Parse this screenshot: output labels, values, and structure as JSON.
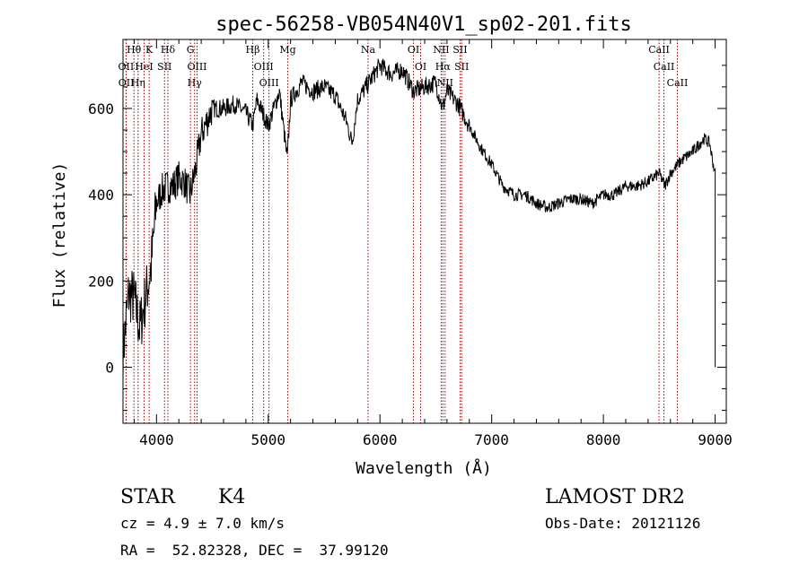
{
  "chart_data": {
    "type": "line",
    "title": "spec-56258-VB054N40V1_sp02-201.fits",
    "xlabel": "Wavelength (Å)",
    "ylabel": "Flux (relative)",
    "xlim": [
      3700,
      9100
    ],
    "ylim": [
      -130,
      760
    ],
    "xticks": [
      {
        "value": 4000,
        "label": "4000"
      },
      {
        "value": 5000,
        "label": "5000"
      },
      {
        "value": 6000,
        "label": "6000"
      },
      {
        "value": 7000,
        "label": "7000"
      },
      {
        "value": 8000,
        "label": "8000"
      },
      {
        "value": 9000,
        "label": "9000"
      }
    ],
    "yticks": [
      {
        "value": 0,
        "label": "0"
      },
      {
        "value": 200,
        "label": "200"
      },
      {
        "value": 400,
        "label": "400"
      },
      {
        "value": 600,
        "label": "600"
      }
    ],
    "grid": false,
    "series": [
      {
        "color": "#000000",
        "x": [
          3700,
          3750,
          3800,
          3850,
          3900,
          3950,
          4000,
          4050,
          4100,
          4150,
          4200,
          4250,
          4300,
          4350,
          4400,
          4450,
          4500,
          4600,
          4700,
          4800,
          4860,
          4900,
          5000,
          5100,
          5170,
          5200,
          5300,
          5400,
          5500,
          5600,
          5700,
          5750,
          5800,
          5900,
          6000,
          6100,
          6200,
          6300,
          6400,
          6500,
          6560,
          6600,
          6700,
          6800,
          6900,
          7000,
          7100,
          7200,
          7300,
          7400,
          7500,
          7600,
          7700,
          7800,
          7900,
          8000,
          8100,
          8200,
          8300,
          8400,
          8500,
          8550,
          8600,
          8700,
          8800,
          8900,
          8950,
          8990,
          9000
        ],
        "y": [
          30,
          170,
          160,
          90,
          160,
          230,
          380,
          410,
          420,
          420,
          440,
          430,
          400,
          460,
          540,
          570,
          600,
          600,
          610,
          590,
          560,
          620,
          560,
          640,
          480,
          620,
          660,
          640,
          650,
          630,
          570,
          520,
          620,
          660,
          700,
          680,
          690,
          640,
          650,
          660,
          600,
          640,
          610,
          560,
          510,
          470,
          420,
          400,
          400,
          380,
          370,
          380,
          390,
          390,
          380,
          400,
          400,
          420,
          420,
          430,
          450,
          420,
          450,
          480,
          500,
          530,
          520,
          460,
          0
        ]
      }
    ],
    "line_markers": [
      {
        "label": "Hθ",
        "wavelength": 3798
      },
      {
        "label": "OII",
        "wavelength": 3727
      },
      {
        "label": "OII",
        "wavelength": 3729
      },
      {
        "label": "HeI",
        "wavelength": 3889
      },
      {
        "label": "Hη",
        "wavelength": 3835
      },
      {
        "label": "K",
        "wavelength": 3934
      },
      {
        "label": "Hδ",
        "wavelength": 4102
      },
      {
        "label": "SII",
        "wavelength": 4072
      },
      {
        "label": "G",
        "wavelength": 4304
      },
      {
        "label": "OIII",
        "wavelength": 4363
      },
      {
        "label": "Hγ",
        "wavelength": 4341
      },
      {
        "label": "Hβ",
        "wavelength": 4861
      },
      {
        "label": "OIII",
        "wavelength": 4959
      },
      {
        "label": "OIII",
        "wavelength": 5007
      },
      {
        "label": "Mg",
        "wavelength": 5175
      },
      {
        "label": "Na",
        "wavelength": 5893
      },
      {
        "label": "OI",
        "wavelength": 6300
      },
      {
        "label": "OI",
        "wavelength": 6364
      },
      {
        "label": "NII",
        "wavelength": 6548
      },
      {
        "label": "Hα",
        "wavelength": 6563
      },
      {
        "label": "NII",
        "wavelength": 6583
      },
      {
        "label": "SII",
        "wavelength": 6717
      },
      {
        "label": "SII",
        "wavelength": 6731
      },
      {
        "label": "CaII",
        "wavelength": 8498
      },
      {
        "label": "CaII",
        "wavelength": 8542
      },
      {
        "label": "CaII",
        "wavelength": 8662
      }
    ]
  },
  "info": {
    "class_label": "STAR",
    "subclass_label": "K4",
    "survey": "LAMOST DR2",
    "cz": "cz = 4.9 ± 7.0 km/s",
    "obs_date": "Obs-Date: 20121126",
    "coords": "RA =  52.82328, DEC =  37.99120"
  }
}
